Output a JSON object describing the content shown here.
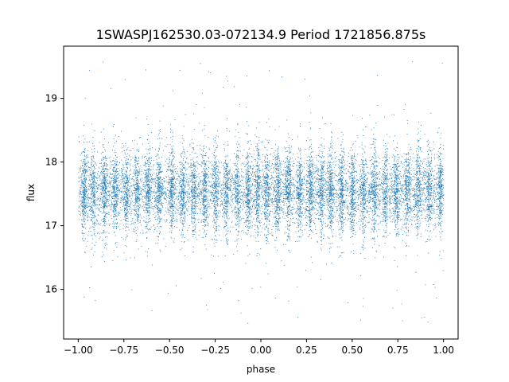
{
  "chart_data": {
    "type": "scatter",
    "title": "1SWASPJ162530.03-072134.9 Period 1721856.875s",
    "xlabel": "phase",
    "ylabel": "flux",
    "xlim": [
      -1.08,
      1.08
    ],
    "ylim": [
      15.22,
      19.82
    ],
    "xticks": [
      -1.0,
      -0.75,
      -0.5,
      -0.25,
      0.0,
      0.25,
      0.5,
      0.75,
      1.0
    ],
    "xtick_labels": [
      "−1.00",
      "−0.75",
      "−0.50",
      "−0.25",
      "0.00",
      "0.25",
      "0.50",
      "0.75",
      "1.00"
    ],
    "yticks": [
      16,
      17,
      18,
      19
    ],
    "ytick_labels": [
      "16",
      "17",
      "18",
      "19"
    ],
    "grid": false,
    "legend": "none",
    "marker_color": "#1f77b4",
    "series": [
      {
        "x_range": [
          -1.0,
          1.0
        ],
        "y_center": 17.55,
        "y_core_range": [
          16.9,
          18.2
        ],
        "y_outlier_range": [
          15.45,
          19.6
        ],
        "phase_bands": [
          -0.97,
          -0.92,
          -0.86,
          -0.8,
          -0.74,
          -0.68,
          -0.62,
          -0.56,
          -0.49,
          -0.43,
          -0.37,
          -0.31,
          -0.25,
          -0.19,
          -0.13,
          -0.07,
          -0.02,
          0.03,
          0.09,
          0.15,
          0.21,
          0.27,
          0.33,
          0.38,
          0.44,
          0.5,
          0.56,
          0.62,
          0.68,
          0.74,
          0.8,
          0.86,
          0.92,
          0.98
        ]
      }
    ]
  }
}
